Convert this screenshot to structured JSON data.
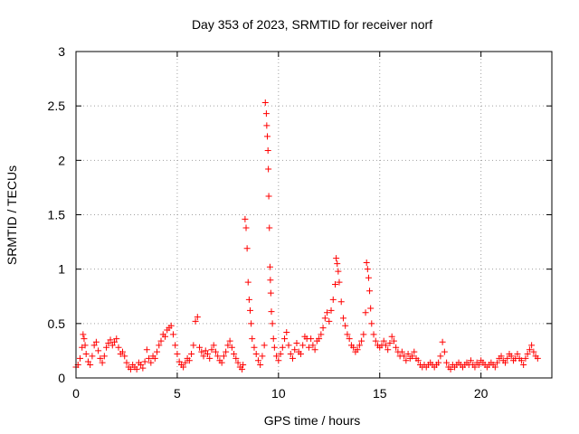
{
  "chart_data": {
    "type": "scatter",
    "title": "Day 353 of 2023, SRMTID for receiver norf",
    "xlabel": "GPS time / hours",
    "ylabel": "SRMTID / TECUs",
    "xlim": [
      0,
      23.5
    ],
    "ylim": [
      0,
      3
    ],
    "xticks": [
      0,
      5,
      10,
      15,
      20
    ],
    "yticks": [
      0,
      0.5,
      1,
      1.5,
      2,
      2.5,
      3
    ],
    "xtick_labels": [
      "0",
      "5",
      "10",
      "15",
      "20"
    ],
    "ytick_labels": [
      "0",
      "0.5",
      "1",
      "1.5",
      "2",
      "2.5",
      "3"
    ],
    "grid": true,
    "marker": "+",
    "color": "#ff0000",
    "series": [
      {
        "name": "SRMTID",
        "points": [
          [
            0.0,
            0.1
          ],
          [
            0.1,
            0.12
          ],
          [
            0.2,
            0.18
          ],
          [
            0.3,
            0.28
          ],
          [
            0.35,
            0.4
          ],
          [
            0.4,
            0.36
          ],
          [
            0.45,
            0.3
          ],
          [
            0.5,
            0.22
          ],
          [
            0.6,
            0.15
          ],
          [
            0.7,
            0.12
          ],
          [
            0.8,
            0.2
          ],
          [
            0.9,
            0.3
          ],
          [
            1.0,
            0.33
          ],
          [
            1.1,
            0.25
          ],
          [
            1.2,
            0.18
          ],
          [
            1.3,
            0.14
          ],
          [
            1.4,
            0.2
          ],
          [
            1.5,
            0.28
          ],
          [
            1.6,
            0.32
          ],
          [
            1.7,
            0.35
          ],
          [
            1.8,
            0.3
          ],
          [
            1.9,
            0.33
          ],
          [
            2.0,
            0.36
          ],
          [
            2.1,
            0.28
          ],
          [
            2.2,
            0.22
          ],
          [
            2.3,
            0.24
          ],
          [
            2.4,
            0.2
          ],
          [
            2.5,
            0.14
          ],
          [
            2.6,
            0.1
          ],
          [
            2.7,
            0.08
          ],
          [
            2.8,
            0.12
          ],
          [
            2.9,
            0.1
          ],
          [
            3.0,
            0.08
          ],
          [
            3.1,
            0.14
          ],
          [
            3.2,
            0.12
          ],
          [
            3.3,
            0.09
          ],
          [
            3.4,
            0.15
          ],
          [
            3.5,
            0.26
          ],
          [
            3.6,
            0.18
          ],
          [
            3.7,
            0.14
          ],
          [
            3.8,
            0.2
          ],
          [
            3.9,
            0.18
          ],
          [
            4.0,
            0.24
          ],
          [
            4.1,
            0.3
          ],
          [
            4.2,
            0.34
          ],
          [
            4.3,
            0.4
          ],
          [
            4.4,
            0.38
          ],
          [
            4.5,
            0.44
          ],
          [
            4.6,
            0.46
          ],
          [
            4.7,
            0.48
          ],
          [
            4.8,
            0.4
          ],
          [
            4.9,
            0.3
          ],
          [
            5.0,
            0.22
          ],
          [
            5.1,
            0.15
          ],
          [
            5.2,
            0.12
          ],
          [
            5.3,
            0.1
          ],
          [
            5.4,
            0.14
          ],
          [
            5.5,
            0.18
          ],
          [
            5.6,
            0.16
          ],
          [
            5.7,
            0.22
          ],
          [
            5.8,
            0.3
          ],
          [
            5.9,
            0.52
          ],
          [
            6.0,
            0.56
          ],
          [
            6.1,
            0.28
          ],
          [
            6.2,
            0.24
          ],
          [
            6.3,
            0.2
          ],
          [
            6.4,
            0.25
          ],
          [
            6.5,
            0.22
          ],
          [
            6.6,
            0.18
          ],
          [
            6.7,
            0.26
          ],
          [
            6.8,
            0.3
          ],
          [
            6.9,
            0.24
          ],
          [
            7.0,
            0.2
          ],
          [
            7.1,
            0.16
          ],
          [
            7.2,
            0.14
          ],
          [
            7.3,
            0.2
          ],
          [
            7.4,
            0.24
          ],
          [
            7.5,
            0.3
          ],
          [
            7.6,
            0.34
          ],
          [
            7.7,
            0.28
          ],
          [
            7.8,
            0.22
          ],
          [
            7.9,
            0.18
          ],
          [
            8.0,
            0.14
          ],
          [
            8.1,
            0.1
          ],
          [
            8.2,
            0.08
          ],
          [
            8.25,
            0.12
          ],
          [
            8.35,
            1.46
          ],
          [
            8.4,
            1.38
          ],
          [
            8.45,
            1.19
          ],
          [
            8.5,
            0.88
          ],
          [
            8.55,
            0.72
          ],
          [
            8.6,
            0.62
          ],
          [
            8.65,
            0.5
          ],
          [
            8.7,
            0.36
          ],
          [
            8.8,
            0.28
          ],
          [
            8.9,
            0.22
          ],
          [
            9.0,
            0.16
          ],
          [
            9.1,
            0.12
          ],
          [
            9.2,
            0.2
          ],
          [
            9.3,
            0.3
          ],
          [
            9.35,
            2.53
          ],
          [
            9.4,
            2.43
          ],
          [
            9.42,
            2.32
          ],
          [
            9.45,
            2.22
          ],
          [
            9.48,
            2.09
          ],
          [
            9.5,
            1.92
          ],
          [
            9.52,
            1.67
          ],
          [
            9.55,
            1.38
          ],
          [
            9.58,
            1.02
          ],
          [
            9.6,
            0.9
          ],
          [
            9.62,
            0.78
          ],
          [
            9.65,
            0.61
          ],
          [
            9.7,
            0.5
          ],
          [
            9.75,
            0.36
          ],
          [
            9.8,
            0.28
          ],
          [
            9.9,
            0.2
          ],
          [
            10.0,
            0.16
          ],
          [
            10.1,
            0.22
          ],
          [
            10.2,
            0.28
          ],
          [
            10.3,
            0.36
          ],
          [
            10.4,
            0.42
          ],
          [
            10.5,
            0.3
          ],
          [
            10.6,
            0.22
          ],
          [
            10.7,
            0.18
          ],
          [
            10.8,
            0.26
          ],
          [
            10.9,
            0.32
          ],
          [
            11.0,
            0.24
          ],
          [
            11.1,
            0.22
          ],
          [
            11.2,
            0.3
          ],
          [
            11.3,
            0.38
          ],
          [
            11.4,
            0.36
          ],
          [
            11.5,
            0.28
          ],
          [
            11.6,
            0.36
          ],
          [
            11.7,
            0.3
          ],
          [
            11.8,
            0.26
          ],
          [
            11.9,
            0.34
          ],
          [
            12.0,
            0.36
          ],
          [
            12.1,
            0.4
          ],
          [
            12.2,
            0.46
          ],
          [
            12.3,
            0.55
          ],
          [
            12.4,
            0.6
          ],
          [
            12.5,
            0.52
          ],
          [
            12.6,
            0.62
          ],
          [
            12.7,
            0.72
          ],
          [
            12.8,
            0.86
          ],
          [
            12.85,
            1.1
          ],
          [
            12.9,
            1.05
          ],
          [
            12.95,
            0.98
          ],
          [
            13.0,
            0.88
          ],
          [
            13.1,
            0.7
          ],
          [
            13.2,
            0.55
          ],
          [
            13.3,
            0.48
          ],
          [
            13.4,
            0.4
          ],
          [
            13.5,
            0.36
          ],
          [
            13.6,
            0.3
          ],
          [
            13.7,
            0.28
          ],
          [
            13.8,
            0.24
          ],
          [
            13.9,
            0.26
          ],
          [
            14.0,
            0.3
          ],
          [
            14.1,
            0.34
          ],
          [
            14.2,
            0.4
          ],
          [
            14.3,
            0.6
          ],
          [
            14.35,
            1.06
          ],
          [
            14.4,
            1.0
          ],
          [
            14.45,
            0.92
          ],
          [
            14.5,
            0.8
          ],
          [
            14.55,
            0.64
          ],
          [
            14.6,
            0.5
          ],
          [
            14.7,
            0.4
          ],
          [
            14.8,
            0.34
          ],
          [
            14.9,
            0.3
          ],
          [
            15.0,
            0.28
          ],
          [
            15.1,
            0.3
          ],
          [
            15.2,
            0.34
          ],
          [
            15.3,
            0.3
          ],
          [
            15.4,
            0.26
          ],
          [
            15.5,
            0.32
          ],
          [
            15.6,
            0.38
          ],
          [
            15.7,
            0.34
          ],
          [
            15.8,
            0.28
          ],
          [
            15.9,
            0.24
          ],
          [
            16.0,
            0.2
          ],
          [
            16.1,
            0.24
          ],
          [
            16.2,
            0.2
          ],
          [
            16.3,
            0.16
          ],
          [
            16.4,
            0.22
          ],
          [
            16.5,
            0.18
          ],
          [
            16.6,
            0.2
          ],
          [
            16.7,
            0.24
          ],
          [
            16.8,
            0.18
          ],
          [
            16.9,
            0.16
          ],
          [
            17.0,
            0.12
          ],
          [
            17.1,
            0.1
          ],
          [
            17.2,
            0.12
          ],
          [
            17.3,
            0.1
          ],
          [
            17.4,
            0.12
          ],
          [
            17.5,
            0.14
          ],
          [
            17.6,
            0.12
          ],
          [
            17.7,
            0.1
          ],
          [
            17.8,
            0.12
          ],
          [
            17.9,
            0.14
          ],
          [
            18.0,
            0.2
          ],
          [
            18.1,
            0.33
          ],
          [
            18.2,
            0.24
          ],
          [
            18.3,
            0.14
          ],
          [
            18.4,
            0.1
          ],
          [
            18.5,
            0.08
          ],
          [
            18.6,
            0.12
          ],
          [
            18.7,
            0.1
          ],
          [
            18.8,
            0.12
          ],
          [
            18.9,
            0.14
          ],
          [
            19.0,
            0.12
          ],
          [
            19.1,
            0.1
          ],
          [
            19.2,
            0.12
          ],
          [
            19.3,
            0.14
          ],
          [
            19.4,
            0.12
          ],
          [
            19.5,
            0.16
          ],
          [
            19.6,
            0.12
          ],
          [
            19.7,
            0.1
          ],
          [
            19.8,
            0.14
          ],
          [
            19.9,
            0.12
          ],
          [
            20.0,
            0.16
          ],
          [
            20.1,
            0.14
          ],
          [
            20.2,
            0.12
          ],
          [
            20.3,
            0.1
          ],
          [
            20.4,
            0.12
          ],
          [
            20.5,
            0.14
          ],
          [
            20.6,
            0.12
          ],
          [
            20.7,
            0.1
          ],
          [
            20.8,
            0.14
          ],
          [
            20.9,
            0.18
          ],
          [
            21.0,
            0.2
          ],
          [
            21.1,
            0.16
          ],
          [
            21.2,
            0.14
          ],
          [
            21.3,
            0.18
          ],
          [
            21.4,
            0.22
          ],
          [
            21.5,
            0.2
          ],
          [
            21.6,
            0.16
          ],
          [
            21.7,
            0.18
          ],
          [
            21.8,
            0.22
          ],
          [
            21.9,
            0.18
          ],
          [
            22.0,
            0.16
          ],
          [
            22.1,
            0.12
          ],
          [
            22.2,
            0.18
          ],
          [
            22.3,
            0.22
          ],
          [
            22.4,
            0.26
          ],
          [
            22.5,
            0.3
          ],
          [
            22.6,
            0.24
          ],
          [
            22.7,
            0.2
          ],
          [
            22.8,
            0.18
          ]
        ]
      }
    ]
  }
}
